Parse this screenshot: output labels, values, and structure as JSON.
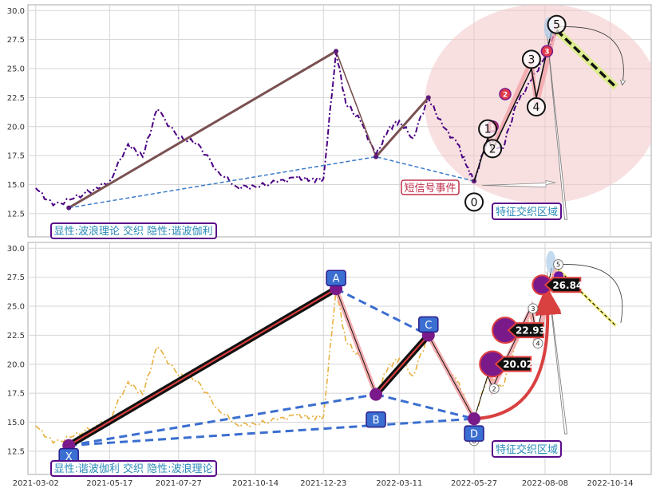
{
  "chart_data": [
    {
      "type": "line",
      "panel": "top",
      "x_tick_labels": [
        "2021-03-02",
        "2021-05-17",
        "2021-07-27",
        "2021-10-14",
        "2021-12-23",
        "2022-03-11",
        "2022-05-27",
        "2022-08-08",
        "2022-10-14"
      ],
      "y_ticks": [
        12.5,
        15.0,
        17.5,
        20.0,
        22.5,
        25.0,
        27.5,
        30.0
      ],
      "ylim": [
        10.5,
        30.5
      ],
      "grid": true,
      "series": [
        {
          "style": "dash-dot",
          "color": "#4b0082",
          "x": [
            "2021-03-02",
            "2021-03-20",
            "2021-04-10",
            "2021-05-01",
            "2021-05-17",
            "2021-06-05",
            "2021-06-20",
            "2021-07-05",
            "2021-07-27",
            "2021-08-15",
            "2021-09-05",
            "2021-09-25",
            "2021-10-14",
            "2021-11-05",
            "2021-11-25",
            "2021-12-10",
            "2021-12-23",
            "2022-01-05",
            "2022-01-15",
            "2022-01-30",
            "2022-02-15",
            "2022-02-28",
            "2022-03-11",
            "2022-03-25",
            "2022-04-10",
            "2022-04-25",
            "2022-05-10",
            "2022-05-20",
            "2022-05-27",
            "2022-06-10",
            "2022-06-25",
            "2022-07-10",
            "2022-07-25",
            "2022-08-08",
            "2022-08-20"
          ],
          "y": [
            14.7,
            13.2,
            13.8,
            14.6,
            15.3,
            18.5,
            17.4,
            21.5,
            19.0,
            18.6,
            16.2,
            14.8,
            14.8,
            15.2,
            15.6,
            15.4,
            15.5,
            26.5,
            22.0,
            20.5,
            17.5,
            19.8,
            20.5,
            19.0,
            22.5,
            20.0,
            18.5,
            16.5,
            15.3,
            19.0,
            18.0,
            22.0,
            24.0,
            26.0,
            28.3
          ]
        }
      ],
      "wave_points": [
        {
          "x": "2022-05-27",
          "y": 13.5,
          "label": "0"
        },
        {
          "x": "2022-06-10",
          "y": 19.8,
          "label": "1"
        },
        {
          "x": "2022-06-15",
          "y": 18.1,
          "label": "2"
        },
        {
          "x": "2022-07-25",
          "y": 25.8,
          "label": "3"
        },
        {
          "x": "2022-07-30",
          "y": 21.7,
          "label": "4"
        },
        {
          "x": "2022-08-20",
          "y": 28.8,
          "label": "5"
        }
      ],
      "small_markers": [
        {
          "x": "2022-06-15",
          "y": 20.0,
          "label": "1"
        },
        {
          "x": "2022-06-28",
          "y": 22.8,
          "label": "2"
        },
        {
          "x": "2022-08-10",
          "y": 26.5,
          "label": "3"
        }
      ],
      "annotations": {
        "left_box": "显性:波浪理论 交织 隐性:谐波伽利",
        "signal": "短信号事件",
        "zone": "特征交织区域"
      }
    },
    {
      "type": "line",
      "panel": "bottom",
      "x_tick_labels": [
        "2021-03-02",
        "2021-05-17",
        "2021-07-27",
        "2021-10-14",
        "2021-12-23",
        "2022-03-11",
        "2022-05-27",
        "2022-08-08",
        "2022-10-14"
      ],
      "y_ticks": [
        12.5,
        15.0,
        17.5,
        20.0,
        22.5,
        25.0,
        27.5,
        30.0
      ],
      "ylim": [
        10.5,
        30.5
      ],
      "grid": true,
      "series": [
        {
          "style": "dash-dot",
          "color": "#e8b040",
          "x": [
            "2021-03-02",
            "2021-03-20",
            "2021-04-10",
            "2021-05-01",
            "2021-05-17",
            "2021-06-05",
            "2021-06-20",
            "2021-07-05",
            "2021-07-27",
            "2021-08-15",
            "2021-09-05",
            "2021-09-25",
            "2021-10-14",
            "2021-11-05",
            "2021-11-25",
            "2021-12-10",
            "2021-12-23",
            "2022-01-05",
            "2022-01-15",
            "2022-01-30",
            "2022-02-15",
            "2022-02-28",
            "2022-03-11",
            "2022-03-25",
            "2022-04-10",
            "2022-04-25",
            "2022-05-10",
            "2022-05-20",
            "2022-05-27",
            "2022-06-10",
            "2022-06-25",
            "2022-07-10",
            "2022-07-25",
            "2022-08-08",
            "2022-08-20"
          ],
          "y": [
            14.7,
            13.2,
            13.8,
            14.6,
            15.3,
            18.5,
            17.4,
            21.5,
            19.0,
            18.6,
            16.2,
            14.8,
            14.8,
            15.2,
            15.6,
            15.4,
            15.5,
            26.5,
            22.0,
            20.5,
            17.5,
            19.8,
            20.5,
            19.0,
            22.5,
            20.0,
            18.5,
            16.5,
            15.3,
            19.0,
            18.0,
            22.0,
            24.0,
            26.0,
            28.3
          ]
        }
      ],
      "harmonic_points": [
        {
          "x": "2021-04-05",
          "y": 13.0,
          "label": "X"
        },
        {
          "x": "2022-01-05",
          "y": 26.5,
          "label": "A"
        },
        {
          "x": "2022-02-15",
          "y": 17.4,
          "label": "B"
        },
        {
          "x": "2022-04-10",
          "y": 22.5,
          "label": "C"
        },
        {
          "x": "2022-05-27",
          "y": 15.3,
          "label": "D"
        }
      ],
      "wave_points": [
        {
          "x": "2022-05-27",
          "y": 13.4,
          "label": "0"
        },
        {
          "x": "2022-06-10",
          "y": 20.0,
          "label": "1"
        },
        {
          "x": "2022-06-15",
          "y": 17.9,
          "label": "2"
        },
        {
          "x": "2022-07-25",
          "y": 24.8,
          "label": "3"
        },
        {
          "x": "2022-07-30",
          "y": 21.8,
          "label": "4"
        },
        {
          "x": "2022-08-20",
          "y": 28.6,
          "label": "5"
        }
      ],
      "price_markers": [
        {
          "x": "2022-06-15",
          "y": 20.02,
          "label": "20.02"
        },
        {
          "x": "2022-06-28",
          "y": 22.93,
          "label": "22.93"
        },
        {
          "x": "2022-08-05",
          "y": 26.84,
          "label": "26.84"
        }
      ],
      "annotations": {
        "left_box": "显性:谐波伽利 交织 隐性:波浪理论",
        "zone": "特征交织区域"
      }
    }
  ],
  "colors": {
    "grid": "#d4d4d4",
    "panel_border": "#aaaaaa",
    "trend": "#7a5050",
    "dashed_blue": "#3a7ac8",
    "highlight_ellipse": "#f2c6c8",
    "zone_border": "#5a0a8a",
    "label_text": "#2a8ab8",
    "signal_text": "#c0304a",
    "harmonic_box": "#3a6ed0",
    "marker_purple": "#7a1a8a",
    "arc_red": "#d94040"
  }
}
